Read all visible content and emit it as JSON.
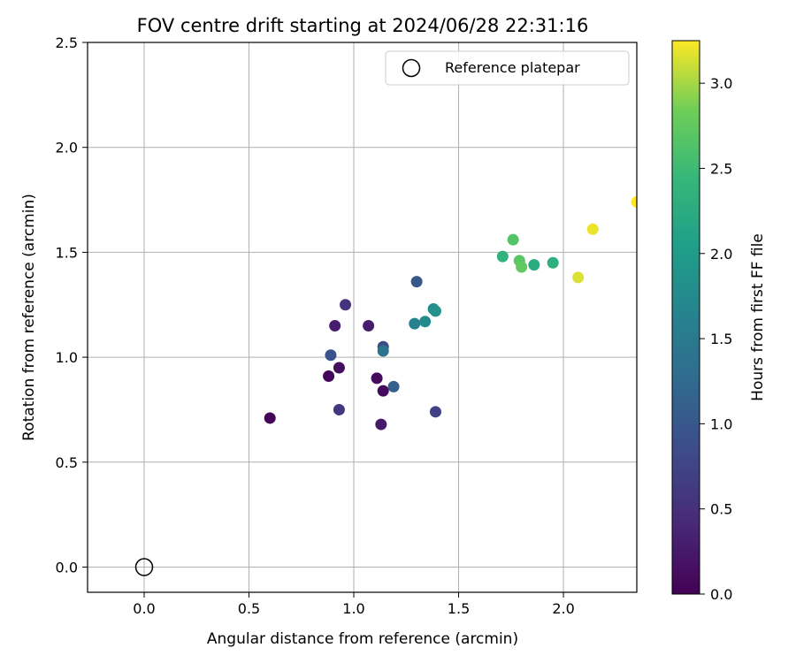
{
  "chart_data": {
    "type": "scatter",
    "title": "FOV centre drift starting at 2024/06/28 22:31:16",
    "xlabel": "Angular distance from reference (arcmin)",
    "ylabel": "Rotation from reference (arcmin)",
    "xlim": [
      -0.27,
      2.35
    ],
    "ylim": [
      -0.12,
      2.5
    ],
    "xticks": [
      0.0,
      0.5,
      1.0,
      1.5,
      2.0
    ],
    "yticks": [
      0.0,
      0.5,
      1.0,
      1.5,
      2.0,
      2.5
    ],
    "x_tick_labels": [
      "0.0",
      "0.5",
      "1.0",
      "1.5",
      "2.0"
    ],
    "y_tick_labels": [
      "0.0",
      "0.5",
      "1.0",
      "1.5",
      "2.0",
      "2.5"
    ],
    "grid": true,
    "legend": {
      "placement": "top-right",
      "entries": [
        {
          "label": "Reference platepar",
          "marker": "open-circle"
        }
      ]
    },
    "reference_point": {
      "x": 0.0,
      "y": 0.0
    },
    "colorbar": {
      "label": "Hours from first FF file",
      "range": [
        0.0,
        3.25
      ],
      "ticks": [
        0.0,
        0.5,
        1.0,
        1.5,
        2.0,
        2.5,
        3.0
      ],
      "tick_labels": [
        "0.0",
        "0.5",
        "1.0",
        "1.5",
        "2.0",
        "2.5",
        "3.0"
      ],
      "colormap": "viridis"
    },
    "points": [
      {
        "x": 0.6,
        "y": 0.71,
        "c": 0.05
      },
      {
        "x": 0.88,
        "y": 0.91,
        "c": 0.05
      },
      {
        "x": 0.93,
        "y": 0.95,
        "c": 0.12
      },
      {
        "x": 1.11,
        "y": 0.9,
        "c": 0.1
      },
      {
        "x": 1.14,
        "y": 0.84,
        "c": 0.1
      },
      {
        "x": 1.13,
        "y": 0.68,
        "c": 0.25
      },
      {
        "x": 0.91,
        "y": 1.15,
        "c": 0.3
      },
      {
        "x": 1.07,
        "y": 1.15,
        "c": 0.3
      },
      {
        "x": 0.96,
        "y": 1.25,
        "c": 0.55
      },
      {
        "x": 0.93,
        "y": 0.75,
        "c": 0.6
      },
      {
        "x": 1.39,
        "y": 0.74,
        "c": 0.7
      },
      {
        "x": 1.14,
        "y": 1.05,
        "c": 0.85
      },
      {
        "x": 0.89,
        "y": 1.01,
        "c": 0.95
      },
      {
        "x": 1.3,
        "y": 1.36,
        "c": 1.0
      },
      {
        "x": 1.19,
        "y": 0.86,
        "c": 1.1
      },
      {
        "x": 1.14,
        "y": 1.03,
        "c": 1.4
      },
      {
        "x": 1.29,
        "y": 1.16,
        "c": 1.6
      },
      {
        "x": 1.34,
        "y": 1.17,
        "c": 1.75
      },
      {
        "x": 1.38,
        "y": 1.23,
        "c": 1.8
      },
      {
        "x": 1.39,
        "y": 1.22,
        "c": 1.85
      },
      {
        "x": 1.86,
        "y": 1.44,
        "c": 2.25
      },
      {
        "x": 1.95,
        "y": 1.45,
        "c": 2.3
      },
      {
        "x": 1.71,
        "y": 1.48,
        "c": 2.35
      },
      {
        "x": 1.76,
        "y": 1.56,
        "c": 2.65
      },
      {
        "x": 1.79,
        "y": 1.46,
        "c": 2.7
      },
      {
        "x": 1.8,
        "y": 1.43,
        "c": 2.75
      },
      {
        "x": 2.07,
        "y": 1.38,
        "c": 3.15
      },
      {
        "x": 2.14,
        "y": 1.61,
        "c": 3.2
      },
      {
        "x": 2.35,
        "y": 1.74,
        "c": 3.25
      }
    ]
  }
}
